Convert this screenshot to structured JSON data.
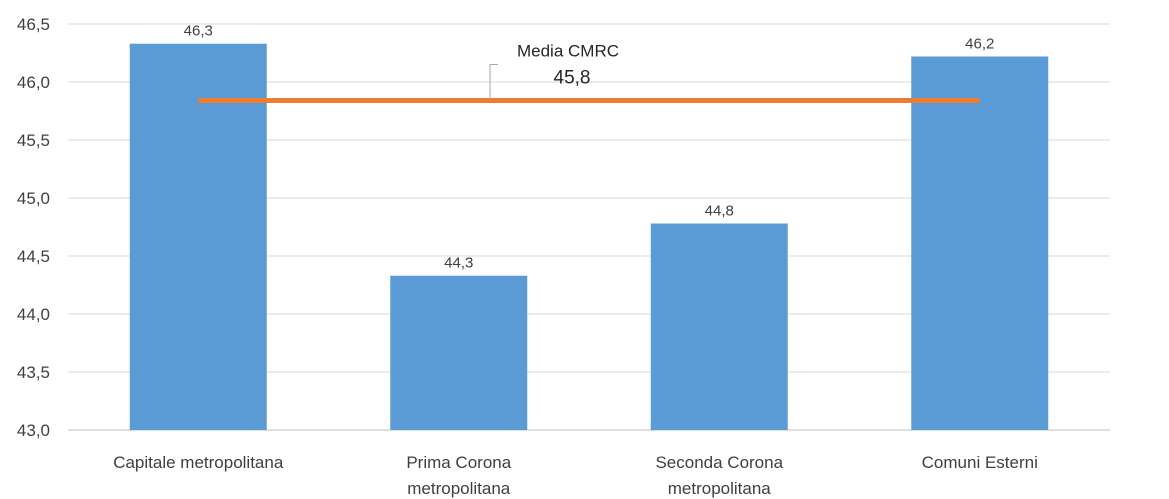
{
  "chart_data": {
    "type": "bar",
    "categories": [
      [
        "Capitale metropolitana"
      ],
      [
        "Prima Corona",
        "metropolitana"
      ],
      [
        "Seconda Corona",
        "metropolitana"
      ],
      [
        "Comuni Esterni"
      ]
    ],
    "values": [
      46.33,
      44.33,
      44.78,
      46.22
    ],
    "data_labels": [
      "46,3",
      "44,3",
      "44,8",
      "46,2"
    ],
    "ylim": [
      43.0,
      46.5
    ],
    "yticks": [
      "43,0",
      "43,5",
      "44,0",
      "44,5",
      "45,0",
      "45,5",
      "46,0",
      "46,5"
    ],
    "ytick_values": [
      43.0,
      43.5,
      44.0,
      44.5,
      45.0,
      45.5,
      46.0,
      46.5
    ],
    "grid": true,
    "reference_line": {
      "name": "Media CMRC",
      "value": 45.84,
      "label": "45,8"
    },
    "colors": {
      "bar": "#5b9bd5",
      "line": "#ed7d31",
      "grid": "#d9d9d9",
      "axis": "#bfbfbf",
      "callout": "#a6a6a6"
    },
    "title": "",
    "xlabel": "",
    "ylabel": ""
  }
}
